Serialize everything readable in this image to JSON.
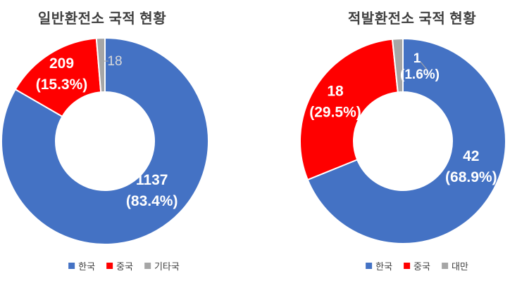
{
  "colors": {
    "korea_blue": "#4472C4",
    "china_red": "#FF0000",
    "gray": "#A6A6A6",
    "title_text": "#404040",
    "legend_text": "#404040",
    "label_white": "#FFFFFF",
    "label_light_gray": "#D9D9D9",
    "background": "#FFFFFF"
  },
  "chart_data": [
    {
      "type": "pie",
      "variant": "donut",
      "title": "일반환전소 국적 현황",
      "legend_position": "bottom",
      "slices": [
        {
          "key": "korea",
          "name": "한국",
          "value": 1137,
          "pct": 83.4,
          "value_label": "1137",
          "pct_label": "(83.4%)",
          "color_key": "korea_blue"
        },
        {
          "key": "china",
          "name": "중국",
          "value": 209,
          "pct": 15.3,
          "value_label": "209",
          "pct_label": "(15.3%)",
          "color_key": "china_red"
        },
        {
          "key": "other",
          "name": "기타국",
          "value": 18,
          "value_label": "18",
          "pct_label": "",
          "color_key": "gray"
        }
      ]
    },
    {
      "type": "pie",
      "variant": "donut",
      "title": "적발환전소 국적 현황",
      "legend_position": "bottom",
      "slices": [
        {
          "key": "korea",
          "name": "한국",
          "value": 42,
          "pct": 68.9,
          "value_label": "42",
          "pct_label": "(68.9%)",
          "color_key": "korea_blue"
        },
        {
          "key": "china",
          "name": "중국",
          "value": 18,
          "pct": 29.5,
          "value_label": "18",
          "pct_label": "(29.5%)",
          "color_key": "china_red"
        },
        {
          "key": "taiwan",
          "name": "대만",
          "value": 1,
          "pct": 1.6,
          "value_label": "1",
          "pct_label": "(1.6%)",
          "color_key": "gray"
        }
      ]
    }
  ]
}
